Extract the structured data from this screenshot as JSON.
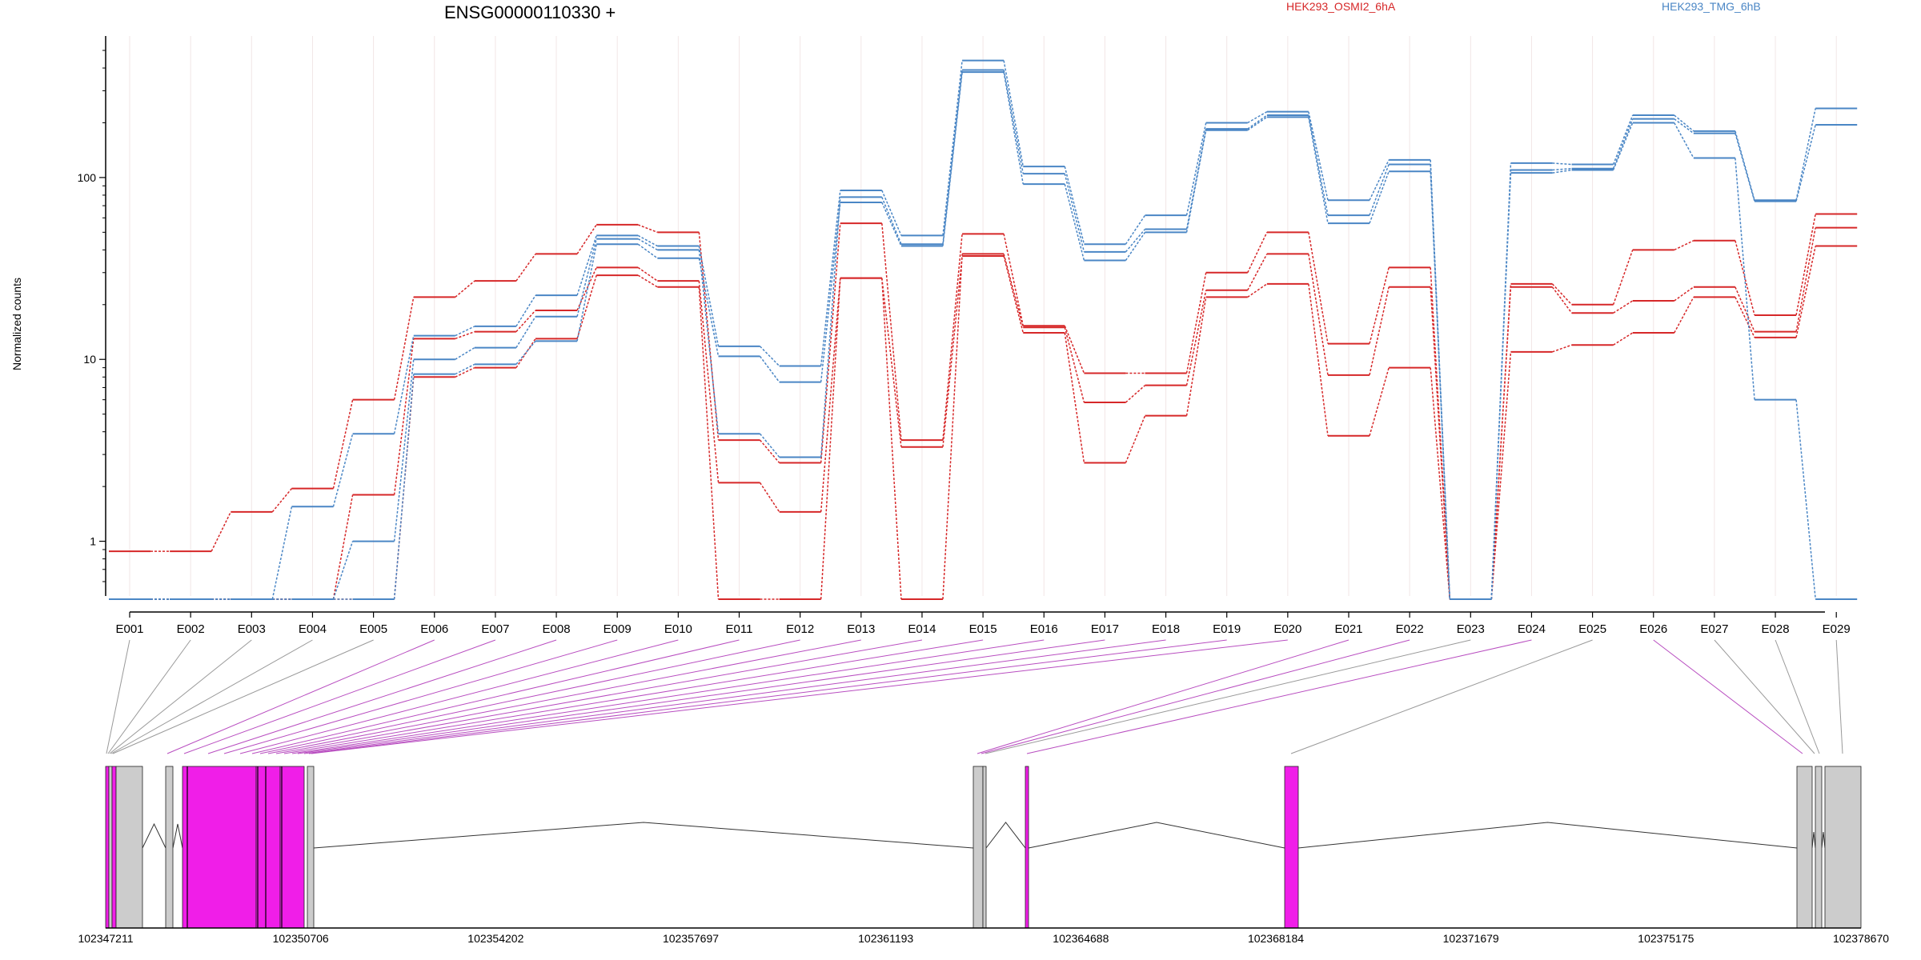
{
  "chart_data": {
    "type": "line",
    "title": "ENSG00000110330 +",
    "ylabel": "Normalized counts",
    "xlabel": "",
    "y_scale": "log",
    "ylim": [
      0.5,
      600
    ],
    "y_ticks": [
      "1",
      "10",
      "100"
    ],
    "grid": "vertical",
    "legend_placement": "top",
    "categories": [
      "E001",
      "E002",
      "E003",
      "E004",
      "E005",
      "E006",
      "E007",
      "E008",
      "E009",
      "E010",
      "E011",
      "E012",
      "E013",
      "E014",
      "E015",
      "E016",
      "E017",
      "E018",
      "E019",
      "E020",
      "E021",
      "E022",
      "E023",
      "E024",
      "E025",
      "E026",
      "E027",
      "E028",
      "E029"
    ],
    "series": [
      {
        "name": "HEK293_OSMI2_6hA",
        "color": "#d62728",
        "values": [
          0.88,
          0.88,
          1.45,
          1.95,
          6.0,
          22,
          27,
          38,
          55,
          50,
          3.6,
          2.7,
          56,
          3.6,
          49,
          15.3,
          8.4,
          8.4,
          30,
          50,
          12.2,
          32,
          0.48,
          26,
          20,
          40,
          45,
          17.5,
          63
        ]
      },
      {
        "name": "",
        "color": "#d62728",
        "values": [
          0.48,
          0.48,
          0.48,
          0.48,
          1.8,
          13,
          14.2,
          18.6,
          32,
          27,
          2.1,
          1.45,
          28,
          0.48,
          38,
          15,
          5.8,
          7.2,
          24,
          38,
          8.2,
          25,
          0.48,
          25,
          18,
          21,
          25,
          14.2,
          53
        ]
      },
      {
        "name": "",
        "color": "#d62728",
        "values": [
          0.48,
          0.48,
          0.48,
          0.48,
          0.48,
          8,
          9,
          13,
          29,
          25,
          0.48,
          0.48,
          28,
          3.3,
          37,
          14,
          2.7,
          4.9,
          22,
          26,
          3.8,
          9,
          0.48,
          11,
          12,
          14,
          22,
          13.2,
          42
        ]
      },
      {
        "name": "HEK293_TMG_6hB",
        "color": "#4a86c5",
        "values": [
          0.48,
          0.48,
          0.48,
          1.55,
          3.9,
          13.5,
          15.2,
          22.5,
          48,
          42,
          11.8,
          9.2,
          85,
          48,
          440,
          115,
          43,
          62,
          200,
          230,
          75,
          125,
          0.48,
          120,
          118,
          220,
          180,
          75,
          240
        ]
      },
      {
        "name": "",
        "color": "#4a86c5",
        "values": [
          0.48,
          0.48,
          0.48,
          0.48,
          1.0,
          10,
          11.6,
          17.2,
          46,
          40,
          3.9,
          2.9,
          78,
          43,
          390,
          105,
          39,
          52,
          185,
          220,
          62,
          118,
          0.48,
          110,
          112,
          210,
          175,
          74,
          195
        ]
      },
      {
        "name": "",
        "color": "#4a86c5",
        "values": [
          0.48,
          0.48,
          0.48,
          0.48,
          0.48,
          8.3,
          9.4,
          12.6,
          43,
          36,
          10.4,
          7.5,
          73,
          42,
          380,
          92,
          35,
          50,
          182,
          215,
          56,
          108,
          0.48,
          106,
          110,
          200,
          128,
          6.0,
          0.48
        ]
      }
    ],
    "gene_model": {
      "coordinates": [
        "102347211",
        "102350706",
        "102354202",
        "102357697",
        "102361193",
        "102364688",
        "102368184",
        "102371679",
        "102375175",
        "102378670"
      ]
    }
  },
  "colors": {
    "highlight_exon": "#f01ee8",
    "exon": "#cccccc",
    "connector_highlight": "#b84dc0",
    "connector": "#999999"
  }
}
